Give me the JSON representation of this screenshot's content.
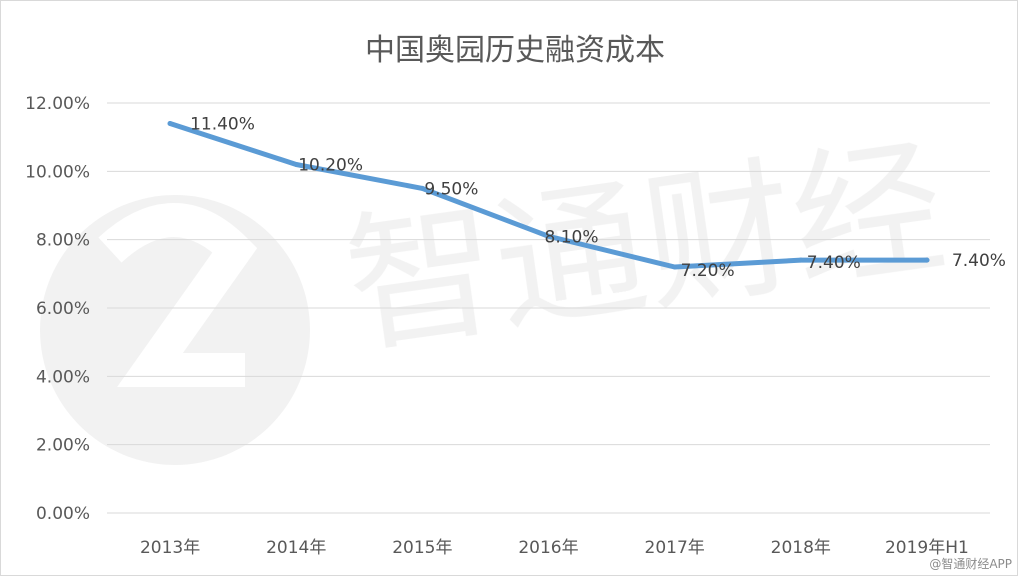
{
  "chart_data": {
    "type": "line",
    "title": "中国奥园历史融资成本",
    "categories": [
      "2013年",
      "2014年",
      "2015年",
      "2016年",
      "2017年",
      "2018年",
      "2019年H1"
    ],
    "series": [
      {
        "values": [
          11.4,
          10.2,
          9.5,
          8.1,
          7.2,
          7.4,
          7.4
        ],
        "color": "#5b9bd5"
      }
    ],
    "data_labels": [
      "11.40%",
      "10.20%",
      "9.50%",
      "8.10%",
      "7.20%",
      "7.40%",
      "7.40%"
    ],
    "y_ticks": [
      "0.00%",
      "2.00%",
      "4.00%",
      "6.00%",
      "8.00%",
      "10.00%",
      "12.00%"
    ],
    "ylim": [
      0,
      12
    ],
    "grid": true,
    "legend": "none"
  },
  "watermark": {
    "text": "智通财经",
    "corner_text": "@智通财经APP",
    "logo_icon": "zhitong-logo-icon"
  }
}
